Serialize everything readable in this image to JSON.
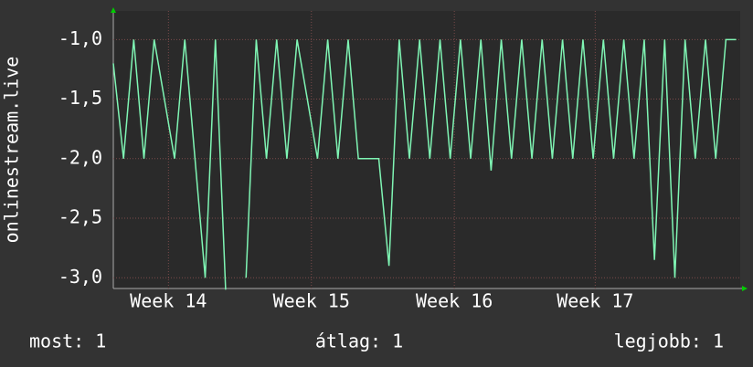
{
  "chart_data": {
    "type": "line",
    "y_label": "onlinestream.live",
    "x": [
      0,
      0.5,
      1,
      1.5,
      2,
      2.5,
      3,
      3.5,
      4,
      4.5,
      5,
      5.5,
      6,
      6.5,
      7,
      7.5,
      8,
      8.5,
      9,
      9.5,
      10,
      10.5,
      11,
      11.5,
      12,
      12.5,
      13,
      13.5,
      14,
      14.5,
      15,
      15.5,
      16,
      16.5,
      17,
      17.5,
      18,
      18.5,
      19,
      19.5,
      20,
      20.5,
      21,
      21.5,
      22,
      22.5,
      23,
      23.5,
      24,
      24.5,
      25,
      25.5,
      26,
      26.5,
      27,
      27.5,
      28,
      28.5,
      29,
      29.5,
      30,
      30.5
    ],
    "values": [
      -1.2,
      -2,
      -1,
      -2,
      -1,
      -1.5,
      -2,
      -1,
      -2,
      -3.0,
      -1,
      -3.1,
      null,
      -3.0,
      -1,
      -2,
      -1,
      -2,
      -1,
      -1.5,
      -2,
      -1,
      -2,
      -1,
      -2,
      -2,
      -2,
      -2.9,
      -1,
      -2,
      -1,
      -2,
      -1,
      -2,
      -1,
      -2,
      -1,
      -2.1,
      -1,
      -2,
      -1,
      -2,
      -1,
      -2,
      -1,
      -2,
      -1,
      -2,
      -1,
      -2,
      -1,
      -2,
      -1,
      -2.85,
      -1,
      -3.0,
      -1,
      -2,
      -1,
      -2,
      -1,
      -1
    ],
    "color": "#7ff5b4",
    "xlim": [
      0,
      30.7
    ],
    "xticks": [
      {
        "value": 2.7,
        "label": "Week 14"
      },
      {
        "value": 9.7,
        "label": "Week 15"
      },
      {
        "value": 16.7,
        "label": "Week 16"
      },
      {
        "value": 23.6,
        "label": "Week 17"
      }
    ],
    "ylim": [
      -3.09,
      -0.76
    ],
    "yticks": [
      {
        "value": -1,
        "label": "-1,0"
      },
      {
        "value": -1.5,
        "label": "-1,5"
      },
      {
        "value": -2,
        "label": "-2,0"
      },
      {
        "value": -2.5,
        "label": "-2,5"
      },
      {
        "value": -3,
        "label": "-3,0"
      }
    ],
    "grid": true,
    "footer": [
      "most: 1",
      "átlag: 1",
      "legjobb: 1"
    ]
  }
}
